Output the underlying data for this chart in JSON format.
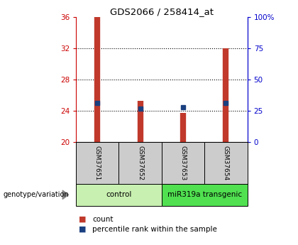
{
  "title": "GDS2066 / 258414_at",
  "samples": [
    "GSM37651",
    "GSM37652",
    "GSM37653",
    "GSM37654"
  ],
  "bar_bottom": 20,
  "bar_tops": [
    36.0,
    25.3,
    23.7,
    32.0
  ],
  "percentile_values": [
    25.0,
    24.3,
    24.5,
    25.0
  ],
  "ylim_left": [
    20,
    36
  ],
  "ylim_right": [
    0,
    100
  ],
  "yticks_left": [
    20,
    24,
    28,
    32,
    36
  ],
  "yticks_right": [
    0,
    25,
    50,
    75,
    100
  ],
  "ytick_labels_right": [
    "0",
    "25",
    "50",
    "75",
    "100%"
  ],
  "bar_color": "#c0392b",
  "percentile_color": "#1a4080",
  "group_labels": [
    "control",
    "miR319a transgenic"
  ],
  "group_colors_hex": [
    "#c8f0b0",
    "#50e050"
  ],
  "group_ranges": [
    [
      0,
      2
    ],
    [
      2,
      4
    ]
  ],
  "genotype_label": "genotype/variation",
  "legend_count_label": "count",
  "legend_percentile_label": "percentile rank within the sample",
  "axis_left_color": "#cc0000",
  "axis_right_color": "#0000cc",
  "sample_box_color": "#cccccc",
  "bar_linewidth": 6
}
